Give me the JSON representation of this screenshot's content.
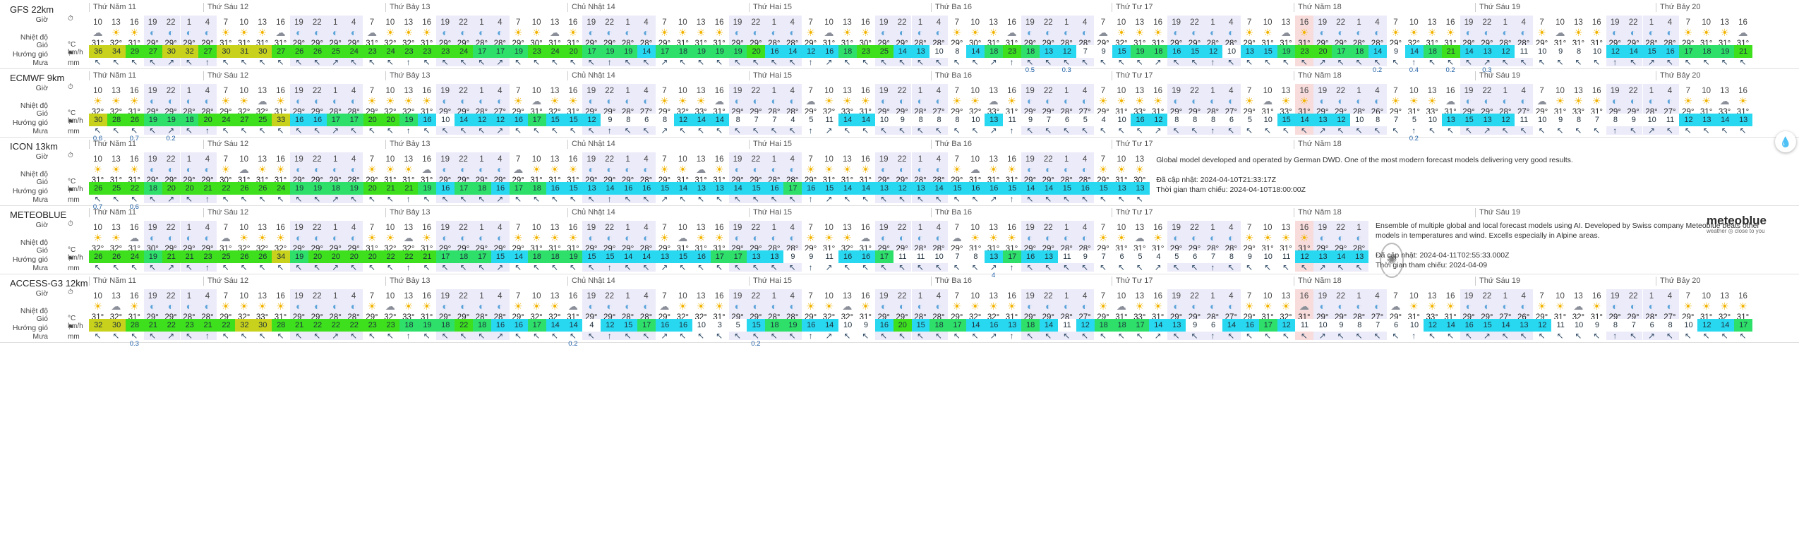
{
  "labels": {
    "hour": "Giờ",
    "temp": "Nhiệt độ",
    "temp_unit": "°C",
    "wind": "Gió",
    "wind_unit": "km/h",
    "dir": "Hướng gió",
    "rain": "Mưa",
    "rain_unit": "mm"
  },
  "hours": [
    10,
    13,
    16,
    19,
    22,
    1,
    4,
    7,
    10,
    13,
    16,
    19,
    22,
    1,
    4,
    7,
    10,
    13,
    16,
    19,
    22,
    1,
    4,
    7,
    10,
    13,
    16,
    19,
    22,
    1,
    4,
    7,
    10,
    13,
    16,
    19,
    22,
    1,
    4,
    7,
    10,
    13,
    16,
    19,
    22,
    1,
    4,
    7,
    10,
    13,
    16,
    19,
    22,
    1,
    4,
    7,
    10,
    13,
    16,
    19,
    22,
    1,
    4,
    7,
    10,
    13,
    16,
    19,
    22,
    1,
    4,
    7,
    10,
    13,
    16,
    19,
    22,
    1,
    4,
    7,
    10,
    13,
    16,
    19,
    22,
    1,
    4,
    7,
    10,
    13,
    16
  ],
  "days": [
    "Thứ Năm 11",
    "Thứ Sáu 12",
    "Thứ Bảy 13",
    "Chủ Nhật 14",
    "Thứ Hai 15",
    "Thứ Ba 16",
    "Thứ Tư 17",
    "Thứ Năm 18",
    "Thứ Sáu 19",
    "Thứ Bảy 20"
  ],
  "colors": {
    "night": "#ecebf9",
    "now": "#f8dcdc",
    "wind_low": "#ffffff",
    "wind_cyan": "#28d7f0",
    "wind_green": "#3ee01d",
    "wind_yellow": "#c8d21c"
  },
  "models": [
    {
      "name": "GFS 22km",
      "ncols": 91,
      "temps": [
        "31°",
        "32°",
        "31°",
        "29°",
        "29°",
        "29°",
        "29°",
        "31°",
        "31°",
        "31°",
        "31°",
        "29°",
        "29°",
        "29°",
        "29°",
        "31°",
        "32°",
        "32°",
        "31°",
        "29°",
        "29°",
        "28°",
        "28°",
        "29°",
        "30°",
        "31°",
        "31°",
        "29°",
        "29°",
        "28°",
        "28°",
        "29°",
        "31°",
        "31°",
        "31°",
        "29°",
        "29°",
        "28°",
        "28°",
        "29°",
        "31°",
        "31°",
        "30°",
        "29°",
        "29°",
        "28°",
        "28°",
        "29°",
        "30°",
        "31°",
        "31°",
        "29°",
        "29°",
        "28°",
        "28°",
        "29°",
        "32°",
        "31°",
        "31°",
        "29°",
        "29°",
        "28°",
        "28°",
        "29°",
        "31°",
        "31°",
        "31°",
        "29°",
        "29°",
        "28°",
        "28°",
        "29°",
        "32°",
        "31°",
        "31°",
        "29°",
        "29°",
        "28°",
        "28°",
        "29°",
        "31°",
        "31°",
        "31°",
        "29°",
        "29°",
        "28°",
        "28°",
        "29°",
        "31°",
        "31°",
        "31°"
      ],
      "wind": [
        36,
        34,
        29,
        27,
        30,
        32,
        27,
        30,
        31,
        30,
        27,
        26,
        26,
        25,
        24,
        23,
        24,
        23,
        23,
        23,
        24,
        17,
        17,
        19,
        23,
        24,
        20,
        17,
        19,
        19,
        14,
        17,
        18,
        19,
        19,
        19,
        20,
        16,
        14,
        12,
        16,
        18,
        23,
        25,
        14,
        13,
        10,
        8,
        14,
        18,
        23,
        18,
        13,
        12,
        7,
        9,
        15,
        19,
        18,
        16,
        15,
        12,
        10,
        13,
        15,
        19,
        23,
        20,
        17,
        18,
        14,
        9,
        14,
        18,
        21,
        14,
        13,
        12,
        11,
        10,
        9,
        8,
        10,
        12,
        14,
        15,
        16,
        17,
        18,
        19,
        21
      ],
      "rain": {
        "19": "",
        "51": "0.5",
        "53": "0.3",
        "70": "0.2",
        "72": "0.4",
        "74": "0.2",
        "76": "0.3"
      },
      "dirs": "↖"
    },
    {
      "name": "ECMWF 9km",
      "ncols": 91,
      "temps": [
        "32°",
        "32°",
        "31°",
        "29°",
        "29°",
        "28°",
        "28°",
        "29°",
        "32°",
        "32°",
        "31°",
        "29°",
        "29°",
        "28°",
        "28°",
        "29°",
        "32°",
        "32°",
        "31°",
        "29°",
        "29°",
        "28°",
        "27°",
        "29°",
        "31°",
        "32°",
        "31°",
        "29°",
        "29°",
        "28°",
        "27°",
        "29°",
        "32°",
        "33°",
        "31°",
        "29°",
        "29°",
        "28°",
        "28°",
        "29°",
        "32°",
        "33°",
        "31°",
        "29°",
        "29°",
        "28°",
        "27°",
        "29°",
        "32°",
        "33°",
        "31°",
        "29°",
        "29°",
        "28°",
        "27°",
        "29°",
        "31°",
        "33°",
        "31°",
        "29°",
        "29°",
        "28°",
        "27°",
        "29°",
        "31°",
        "33°",
        "31°",
        "29°",
        "29°",
        "28°",
        "26°",
        "29°",
        "31°",
        "33°",
        "31°",
        "29°",
        "29°",
        "28°",
        "27°",
        "29°",
        "31°",
        "33°",
        "31°",
        "29°",
        "29°",
        "28°",
        "27°",
        "29°",
        "31°",
        "33°",
        "31°"
      ],
      "wind": [
        30,
        28,
        26,
        19,
        19,
        18,
        20,
        24,
        27,
        25,
        33,
        16,
        16,
        17,
        17,
        20,
        20,
        19,
        16,
        10,
        14,
        12,
        12,
        16,
        17,
        15,
        15,
        12,
        9,
        8,
        6,
        8,
        12,
        14,
        14,
        8,
        7,
        7,
        4,
        5,
        11,
        14,
        14,
        10,
        9,
        8,
        8,
        8,
        10,
        13,
        11,
        9,
        7,
        6,
        5,
        4,
        10,
        16,
        12,
        8,
        8,
        8,
        6,
        5,
        10,
        15,
        14,
        13,
        12,
        10,
        8,
        7,
        5,
        10,
        13,
        15,
        13,
        12,
        11,
        10,
        9,
        8,
        7,
        8,
        9,
        10,
        11,
        12,
        13,
        14,
        13
      ],
      "rain": {
        "0": "0.6",
        "2": "0.7",
        "4": "0.2",
        "72": "0.2"
      }
    },
    {
      "name": "ICON 13km",
      "ncols": 58,
      "temps": [
        "31°",
        "31°",
        "31°",
        "29°",
        "29°",
        "29°",
        "29°",
        "30°",
        "31°",
        "31°",
        "31°",
        "29°",
        "29°",
        "29°",
        "28°",
        "29°",
        "31°",
        "31°",
        "31°",
        "29°",
        "29°",
        "29°",
        "29°",
        "29°",
        "31°",
        "31°",
        "31°",
        "29°",
        "29°",
        "29°",
        "28°",
        "29°",
        "31°",
        "31°",
        "31°",
        "29°",
        "29°",
        "28°",
        "28°",
        "29°",
        "31°",
        "31°",
        "31°",
        "29°",
        "29°",
        "28°",
        "28°",
        "29°",
        "31°",
        "31°",
        "31°",
        "29°",
        "29°",
        "28°",
        "28°",
        "29°",
        "31°",
        "30°"
      ],
      "wind": [
        26,
        25,
        22,
        18,
        20,
        20,
        21,
        22,
        26,
        26,
        24,
        19,
        19,
        18,
        19,
        20,
        21,
        21,
        19,
        16,
        17,
        18,
        16,
        17,
        18,
        16,
        15,
        13,
        14,
        16,
        16,
        15,
        14,
        13,
        13,
        14,
        15,
        16,
        17,
        16,
        15,
        14,
        14,
        13,
        12,
        13,
        14,
        15,
        16,
        16,
        15,
        14,
        14,
        15,
        16,
        15,
        13,
        13
      ],
      "rain": {
        "0": "0.7",
        "2": "0.6"
      },
      "info": [
        "Global model developed and operated by German DWD. One of the most modern forecast models delivering very good results.",
        "",
        "Đã cập nhật: 2024-04-10T21:33:17Z",
        "Thời gian tham chiếu: 2024-04-10T18:00:00Z"
      ]
    },
    {
      "name": "METEOBLUE",
      "ncols": 70,
      "temps": [
        "32°",
        "32°",
        "31°",
        "30°",
        "29°",
        "29°",
        "29°",
        "31°",
        "32°",
        "32°",
        "32°",
        "29°",
        "29°",
        "29°",
        "29°",
        "31°",
        "32°",
        "32°",
        "31°",
        "29°",
        "29°",
        "29°",
        "29°",
        "29°",
        "31°",
        "31°",
        "31°",
        "29°",
        "29°",
        "29°",
        "28°",
        "29°",
        "31°",
        "31°",
        "31°",
        "29°",
        "29°",
        "28°",
        "28°",
        "29°",
        "31°",
        "32°",
        "31°",
        "29°",
        "29°",
        "28°",
        "28°",
        "29°",
        "31°",
        "31°",
        "31°",
        "29°",
        "29°",
        "28°",
        "28°",
        "29°",
        "31°",
        "31°",
        "31°",
        "29°",
        "29°",
        "28°",
        "28°",
        "29°",
        "31°",
        "31°",
        "31°",
        "29°",
        "29°",
        "28°"
      ],
      "wind": [
        26,
        26,
        24,
        19,
        21,
        21,
        23,
        25,
        26,
        26,
        34,
        19,
        20,
        20,
        20,
        20,
        22,
        22,
        21,
        17,
        18,
        17,
        15,
        14,
        18,
        18,
        19,
        15,
        15,
        14,
        14,
        13,
        15,
        16,
        17,
        17,
        13,
        13,
        9,
        9,
        11,
        16,
        16,
        17,
        11,
        11,
        10,
        7,
        8,
        13,
        17,
        16,
        13,
        11,
        9,
        7,
        6,
        5,
        4,
        5,
        6,
        7,
        8,
        9,
        10,
        11,
        12,
        13,
        14,
        13
      ],
      "rain": {
        "49": "4"
      },
      "info": [
        "Ensemble of multiple global and local forecast models using AI. Developed by Swiss company Meteoblue beats other models in temperatures and wind. Excells especially in Alpine areas.",
        "",
        "Đã cập nhật: 2024-04-11T02:55:33.000Z",
        "Thời gian tham chiếu: 2024-04-09"
      ],
      "logo": "meteoblue",
      "logo_sub": "weather ◎ close to you"
    },
    {
      "name": "ACCESS-G3 12km",
      "ncols": 91,
      "temps": [
        "31°",
        "32°",
        "31°",
        "29°",
        "29°",
        "28°",
        "28°",
        "29°",
        "32°",
        "33°",
        "31°",
        "29°",
        "29°",
        "28°",
        "28°",
        "29°",
        "32°",
        "33°",
        "31°",
        "29°",
        "29°",
        "28°",
        "28°",
        "29°",
        "32°",
        "32°",
        "31°",
        "29°",
        "29°",
        "28°",
        "28°",
        "29°",
        "32°",
        "32°",
        "31°",
        "29°",
        "29°",
        "28°",
        "28°",
        "29°",
        "32°",
        "32°",
        "31°",
        "29°",
        "29°",
        "28°",
        "28°",
        "29°",
        "32°",
        "32°",
        "31°",
        "29°",
        "29°",
        "28°",
        "27°",
        "29°",
        "31°",
        "33°",
        "31°",
        "29°",
        "29°",
        "28°",
        "27°",
        "29°",
        "31°",
        "32°",
        "31°",
        "29°",
        "29°",
        "28°",
        "27°",
        "29°",
        "31°",
        "33°",
        "31°",
        "29°",
        "29°",
        "27°",
        "26°",
        "29°",
        "31°",
        "32°",
        "31°",
        "29°",
        "29°",
        "28°",
        "27°",
        "29°",
        "31°",
        "32°",
        "31°"
      ],
      "wind": [
        32,
        30,
        28,
        21,
        22,
        23,
        21,
        22,
        32,
        30,
        28,
        21,
        22,
        22,
        22,
        23,
        23,
        18,
        19,
        18,
        22,
        18,
        16,
        16,
        17,
        14,
        14,
        4,
        12,
        15,
        17,
        16,
        16,
        10,
        3,
        5,
        15,
        18,
        19,
        16,
        14,
        10,
        9,
        16,
        20,
        15,
        18,
        17,
        14,
        16,
        13,
        18,
        14,
        11,
        12,
        18,
        18,
        17,
        14,
        13,
        9,
        6,
        14,
        16,
        17,
        12,
        11,
        10,
        9,
        8,
        7,
        6,
        10,
        12,
        14,
        16,
        15,
        14,
        13,
        12,
        11,
        10,
        9,
        8,
        7,
        6,
        8,
        10,
        12,
        14,
        17
      ],
      "rain": {
        "2": "0.3",
        "26": "0.2",
        "36": "0.2"
      }
    }
  ]
}
